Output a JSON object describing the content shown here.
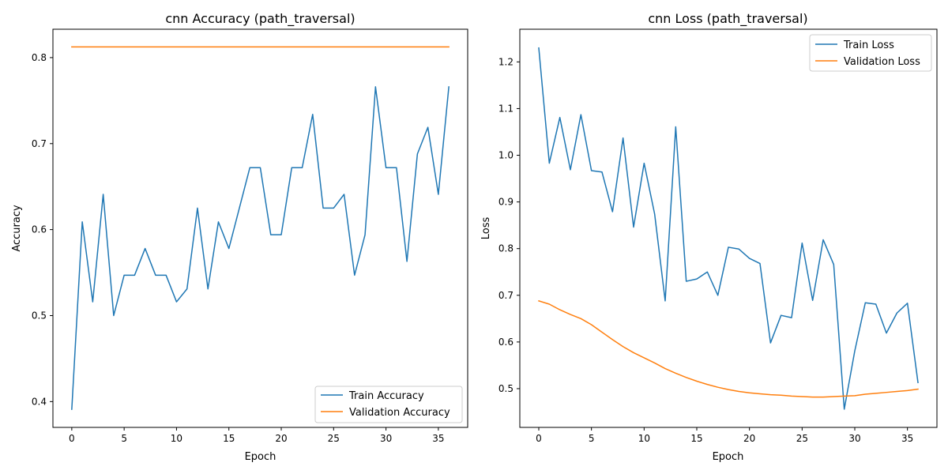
{
  "chart_data": [
    {
      "type": "line",
      "title": "cnn Accuracy (path_traversal)",
      "xlabel": "Epoch",
      "ylabel": "Accuracy",
      "xlim": [
        -1.8,
        37.8
      ],
      "ylim": [
        0.37,
        0.833
      ],
      "xticks": [
        0,
        5,
        10,
        15,
        20,
        25,
        30,
        35
      ],
      "yticks": [
        0.4,
        0.5,
        0.6,
        0.7,
        0.8
      ],
      "ytick_labels": [
        "0.4",
        "0.5",
        "0.6",
        "0.7",
        "0.8"
      ],
      "legend_position": "lower-right",
      "x": [
        0,
        1,
        2,
        3,
        4,
        5,
        6,
        7,
        8,
        9,
        10,
        11,
        12,
        13,
        14,
        15,
        16,
        17,
        18,
        19,
        20,
        21,
        22,
        23,
        24,
        25,
        26,
        27,
        28,
        29,
        30,
        31,
        32,
        33,
        34,
        35,
        36
      ],
      "series": [
        {
          "name": "Train Accuracy",
          "color": "#1f77b4",
          "values": [
            0.391,
            0.609,
            0.516,
            0.641,
            0.5,
            0.547,
            0.547,
            0.578,
            0.547,
            0.547,
            0.516,
            0.531,
            0.625,
            0.531,
            0.609,
            0.578,
            0.625,
            0.672,
            0.672,
            0.594,
            0.594,
            0.672,
            0.672,
            0.734,
            0.625,
            0.625,
            0.641,
            0.547,
            0.594,
            0.766,
            0.672,
            0.672,
            0.563,
            0.688,
            0.719,
            0.641,
            0.766
          ]
        },
        {
          "name": "Validation Accuracy",
          "color": "#ff7f0e",
          "values": [
            0.8125,
            0.8125,
            0.8125,
            0.8125,
            0.8125,
            0.8125,
            0.8125,
            0.8125,
            0.8125,
            0.8125,
            0.8125,
            0.8125,
            0.8125,
            0.8125,
            0.8125,
            0.8125,
            0.8125,
            0.8125,
            0.8125,
            0.8125,
            0.8125,
            0.8125,
            0.8125,
            0.8125,
            0.8125,
            0.8125,
            0.8125,
            0.8125,
            0.8125,
            0.8125,
            0.8125,
            0.8125,
            0.8125,
            0.8125,
            0.8125,
            0.8125,
            0.8125
          ]
        }
      ]
    },
    {
      "type": "line",
      "title": "cnn Loss (path_traversal)",
      "xlabel": "Epoch",
      "ylabel": "Loss",
      "xlim": [
        -1.8,
        37.8
      ],
      "ylim": [
        0.417,
        1.27
      ],
      "xticks": [
        0,
        5,
        10,
        15,
        20,
        25,
        30,
        35
      ],
      "yticks": [
        0.5,
        0.6,
        0.7,
        0.8,
        0.9,
        1.0,
        1.1,
        1.2
      ],
      "ytick_labels": [
        "0.5",
        "0.6",
        "0.7",
        "0.8",
        "0.9",
        "1.0",
        "1.1",
        "1.2"
      ],
      "legend_position": "upper-right",
      "x": [
        0,
        1,
        2,
        3,
        4,
        5,
        6,
        7,
        8,
        9,
        10,
        11,
        12,
        13,
        14,
        15,
        16,
        17,
        18,
        19,
        20,
        21,
        22,
        23,
        24,
        25,
        26,
        27,
        28,
        29,
        30,
        31,
        32,
        33,
        34,
        35,
        36
      ],
      "series": [
        {
          "name": "Train Loss",
          "color": "#1f77b4",
          "values": [
            1.23,
            0.983,
            1.081,
            0.969,
            1.087,
            0.967,
            0.964,
            0.879,
            1.037,
            0.846,
            0.983,
            0.874,
            0.688,
            1.061,
            0.73,
            0.735,
            0.75,
            0.7,
            0.803,
            0.799,
            0.779,
            0.768,
            0.598,
            0.657,
            0.652,
            0.812,
            0.689,
            0.819,
            0.766,
            0.456,
            0.581,
            0.684,
            0.681,
            0.619,
            0.662,
            0.683,
            0.513
          ]
        },
        {
          "name": "Validation Loss",
          "color": "#ff7f0e",
          "values": [
            0.688,
            0.681,
            0.669,
            0.659,
            0.65,
            0.637,
            0.621,
            0.605,
            0.59,
            0.577,
            0.566,
            0.555,
            0.543,
            0.533,
            0.524,
            0.516,
            0.509,
            0.503,
            0.498,
            0.494,
            0.491,
            0.489,
            0.487,
            0.486,
            0.484,
            0.483,
            0.482,
            0.482,
            0.483,
            0.484,
            0.485,
            0.488,
            0.49,
            0.492,
            0.494,
            0.496,
            0.499
          ]
        }
      ]
    }
  ]
}
